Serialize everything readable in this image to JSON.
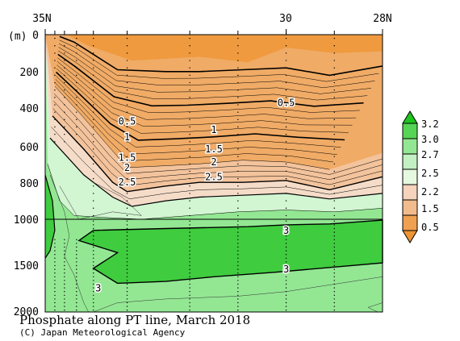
{
  "chart_data": {
    "type": "contour",
    "title": "Phosphate along PT line, March 2018",
    "credit": "(C) Japan Meteorological Agency",
    "y_unit_label": "(m)",
    "x_axis": {
      "range": [
        35,
        28
      ],
      "tick_labels": [
        {
          "value": 35,
          "label": "35N"
        },
        {
          "value": 30,
          "label": "30"
        },
        {
          "value": 28,
          "label": "28N"
        }
      ]
    },
    "y_axis": {
      "range": [
        0,
        2000
      ],
      "note": "upper panel 0-1000 m, lower panel 1000-2000 m (compressed)",
      "tick_labels": [
        "0",
        "200",
        "400",
        "600",
        "800",
        "1000",
        "1500",
        "2000"
      ]
    },
    "colorbar": {
      "labels": [
        "3.2",
        "3.0",
        "2.7",
        "2.5",
        "2.2",
        "1.5",
        "0.5"
      ],
      "colors": [
        "#1fc41f",
        "#55d455",
        "#93e793",
        "#d2f5d2",
        "#f5cdb3",
        "#f1b888",
        "#ef9a3e"
      ]
    },
    "contour_labels": [
      {
        "text": "0.5",
        "lat": 33.3,
        "depth": 470
      },
      {
        "text": "0.5",
        "lat": 30.0,
        "depth": 370
      },
      {
        "text": "1",
        "lat": 33.3,
        "depth": 555
      },
      {
        "text": "1",
        "lat": 31.5,
        "depth": 515
      },
      {
        "text": "1.5",
        "lat": 33.3,
        "depth": 665
      },
      {
        "text": "1.5",
        "lat": 31.5,
        "depth": 620
      },
      {
        "text": "2",
        "lat": 33.3,
        "depth": 720
      },
      {
        "text": "2",
        "lat": 31.5,
        "depth": 690
      },
      {
        "text": "2.5",
        "lat": 33.3,
        "depth": 800
      },
      {
        "text": "2.5",
        "lat": 31.5,
        "depth": 770
      },
      {
        "text": "3",
        "lat": 30.0,
        "depth": 1120
      },
      {
        "text": "3",
        "lat": 30.0,
        "depth": 1540
      },
      {
        "text": "3",
        "lat": 33.9,
        "depth": 1745
      }
    ]
  }
}
